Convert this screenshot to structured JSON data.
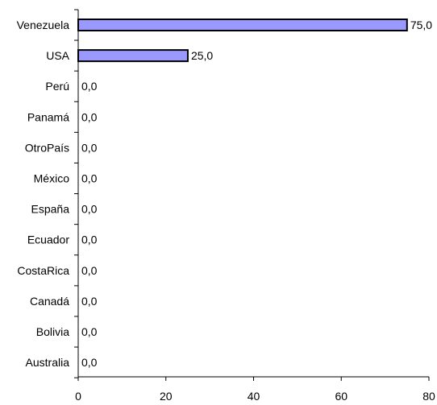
{
  "chart_data": {
    "type": "bar",
    "orientation": "horizontal",
    "categories": [
      "Venezuela",
      "USA",
      "Perú",
      "Panamá",
      "OtroPaís",
      "México",
      "España",
      "Ecuador",
      "CostaRica",
      "Canadá",
      "Bolivia",
      "Australia"
    ],
    "values": [
      75.0,
      25.0,
      0.0,
      0.0,
      0.0,
      0.0,
      0.0,
      0.0,
      0.0,
      0.0,
      0.0,
      0.0
    ],
    "value_labels": [
      "75,0",
      "25,0",
      "0,0",
      "0,0",
      "0,0",
      "0,0",
      "0,0",
      "0,0",
      "0,0",
      "0,0",
      "0,0",
      "0,0"
    ],
    "x_ticks": [
      "0",
      "20",
      "40",
      "60",
      "80"
    ],
    "xlim": [
      0,
      80
    ],
    "title": "",
    "xlabel": "",
    "ylabel": "",
    "grid": false,
    "legend": "none",
    "colors": {
      "bar_fill": "#9999ff",
      "bar_stroke": "#000000"
    }
  }
}
